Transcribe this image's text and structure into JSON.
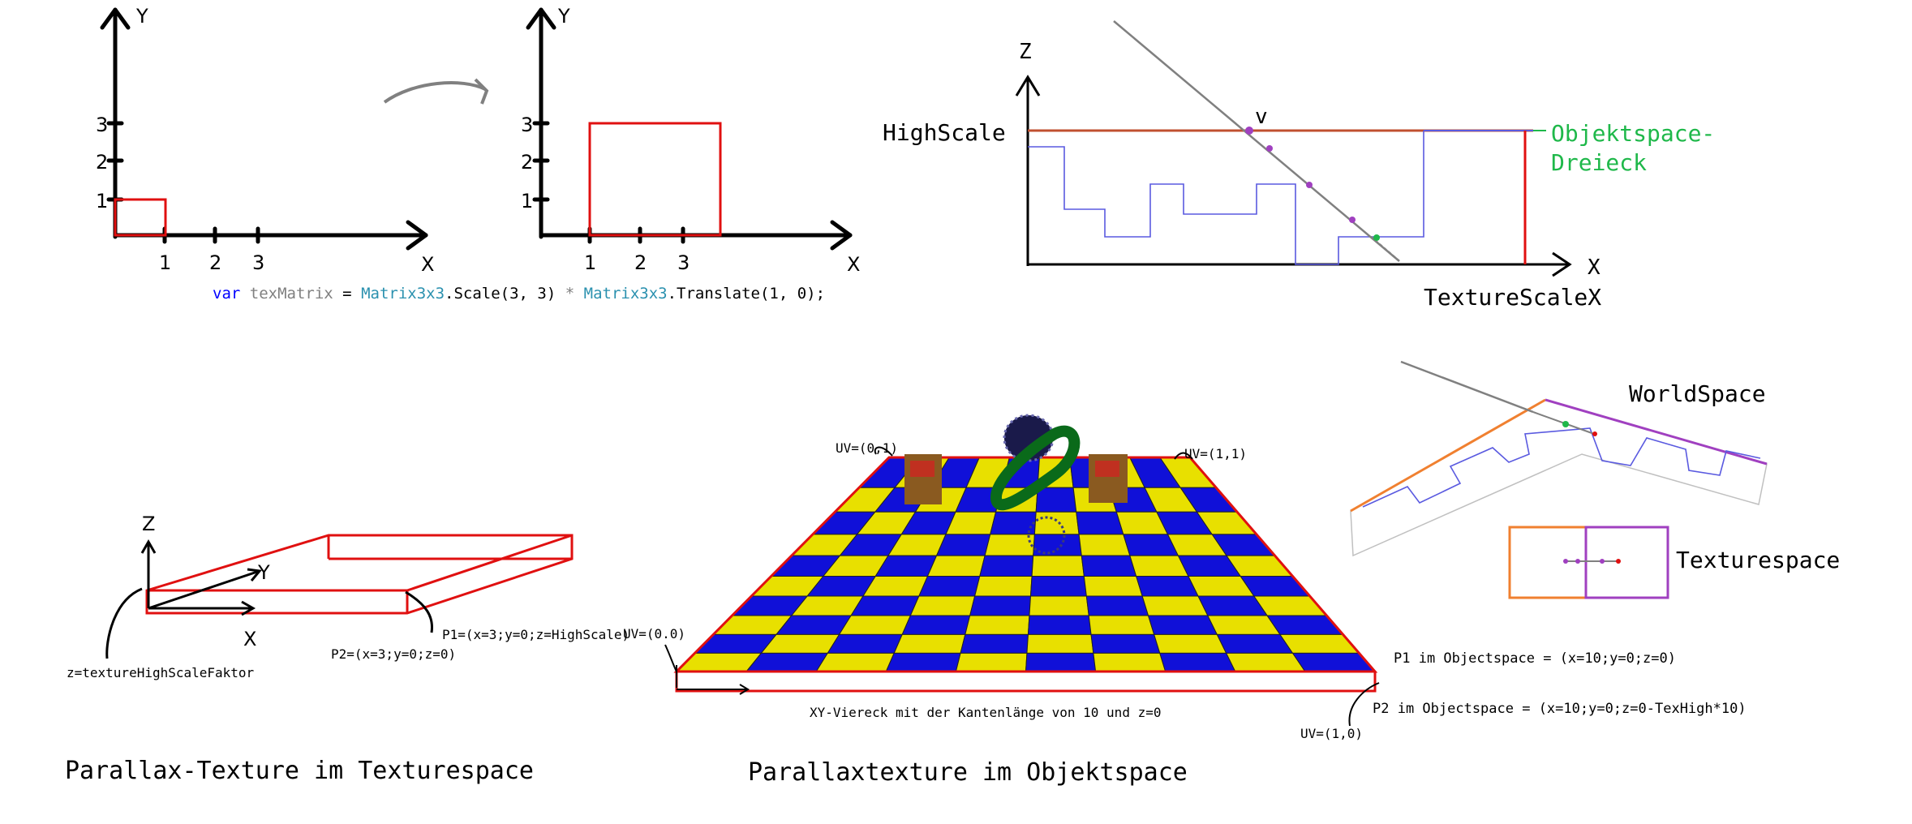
{
  "colors": {
    "red": "#e01010",
    "blue": "#5a5ae0",
    "green": "#1fb84a",
    "orange": "#f08030",
    "purple": "#a040c0",
    "board_blue": "#1010d8",
    "board_yellow": "#e8e000",
    "code_keyword": "#0000ff",
    "code_type": "#2b91af",
    "code_var": "#808080"
  },
  "top_left": {
    "graph1": {
      "x": "X",
      "y": "Y",
      "xticks": [
        "1",
        "2",
        "3"
      ],
      "yticks": [
        "1",
        "2",
        "3"
      ]
    },
    "graph2": {
      "x": "X",
      "y": "Y",
      "xticks": [
        "1",
        "2",
        "3"
      ],
      "yticks": [
        "1",
        "2",
        "3"
      ]
    },
    "code": {
      "var": "var",
      "name": "texMatrix",
      "eq": " = ",
      "type1": "Matrix3x3",
      "call1": ".Scale(3, 3) ",
      "op": "*",
      "type2": " Matrix3x3",
      "call2": ".Translate(1, 0);"
    }
  },
  "top_right": {
    "z": "Z",
    "x": "X",
    "v": "v",
    "highscale": "HighScale",
    "texscalex": "TextureScaleX",
    "objektspace1": "Objektspace-",
    "objektspace2": "Dreieck"
  },
  "bottom_left": {
    "z": "Z",
    "y": "Y",
    "x": "X",
    "z_label": "z=textureHighScaleFaktor",
    "p1": "P1=(x=3;y=0;z=HighScale)",
    "p2": "P2=(x=3;y=0;z=0)",
    "title": "Parallax-Texture im Texturespace"
  },
  "bottom_center": {
    "uv01": "UV=(0,1)",
    "uv11": "UV=(1,1)",
    "uv00": "UV=(0.0)",
    "uv10": "UV=(1,0)",
    "p1": "P1 im Objectspace = (x=10;y=0;z=0)",
    "p2": "P2 im Objectspace = (x=10;y=0;z=0-TexHigh*10)",
    "caption": "XY-Viereck mit der Kantenlänge von 10 und z=0",
    "title": "Parallaxtexture im Objektspace"
  },
  "bottom_right": {
    "worldspace": "WorldSpace",
    "texturespace": "Texturespace"
  }
}
